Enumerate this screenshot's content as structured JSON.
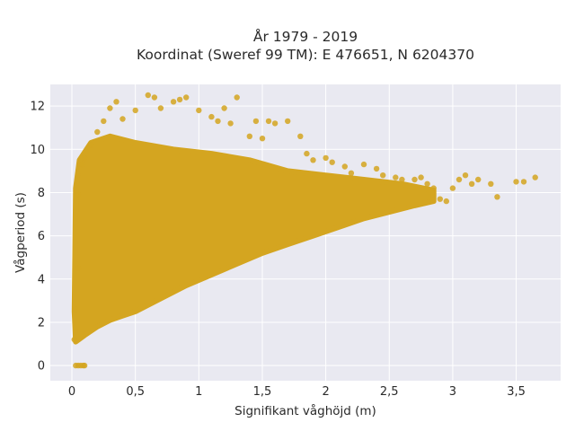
{
  "chart_data": {
    "type": "scatter",
    "title_line1": "År 1979 - 2019",
    "title_line2": "Koordinat (Sweref 99 TM): E 476651, N 6204370",
    "xlabel": "Signifikant våghöjd (m)",
    "ylabel": "Vågperiod (s)",
    "xlim": [
      -0.17,
      3.85
    ],
    "ylim": [
      -0.7,
      13.0
    ],
    "x_ticks": [
      0,
      0.5,
      1,
      1.5,
      2,
      2.5,
      3,
      3.5
    ],
    "x_tick_labels": [
      "0",
      "0,5",
      "1",
      "1,5",
      "2",
      "2,5",
      "3",
      "3,5"
    ],
    "y_ticks": [
      0,
      2,
      4,
      6,
      8,
      10,
      12
    ],
    "y_tick_labels": [
      "0",
      "2",
      "4",
      "6",
      "8",
      "10",
      "12"
    ],
    "grid": true,
    "legend": "none",
    "colors": {
      "point": "#D4A520",
      "plot_background": "#E9E9F1",
      "grid": "#ffffff"
    },
    "points": [
      [
        0.03,
        0.0
      ],
      [
        0.05,
        0.0
      ],
      [
        0.07,
        0.0
      ],
      [
        0.09,
        0.0
      ],
      [
        0.1,
        0.0
      ],
      [
        0.02,
        1.2
      ],
      [
        0.03,
        2.6
      ],
      [
        0.05,
        4.5
      ],
      [
        0.05,
        7.9
      ],
      [
        0.08,
        9.3
      ],
      [
        0.1,
        9.6
      ],
      [
        0.15,
        10.2
      ],
      [
        0.2,
        10.8
      ],
      [
        0.25,
        11.3
      ],
      [
        0.3,
        11.9
      ],
      [
        0.35,
        12.2
      ],
      [
        0.4,
        11.4
      ],
      [
        0.5,
        11.8
      ],
      [
        0.6,
        12.5
      ],
      [
        0.65,
        12.4
      ],
      [
        0.7,
        11.9
      ],
      [
        0.8,
        12.2
      ],
      [
        0.85,
        12.3
      ],
      [
        0.9,
        12.4
      ],
      [
        1.0,
        11.8
      ],
      [
        1.1,
        11.5
      ],
      [
        1.15,
        11.3
      ],
      [
        1.2,
        11.9
      ],
      [
        1.3,
        12.4
      ],
      [
        1.25,
        11.2
      ],
      [
        1.4,
        10.6
      ],
      [
        1.45,
        11.3
      ],
      [
        1.5,
        10.5
      ],
      [
        1.55,
        11.3
      ],
      [
        1.6,
        11.2
      ],
      [
        1.7,
        11.3
      ],
      [
        1.8,
        10.6
      ],
      [
        1.85,
        9.8
      ],
      [
        1.9,
        9.5
      ],
      [
        2.0,
        9.6
      ],
      [
        2.05,
        9.4
      ],
      [
        2.15,
        9.2
      ],
      [
        2.2,
        8.9
      ],
      [
        2.3,
        9.3
      ],
      [
        2.4,
        9.1
      ],
      [
        2.45,
        8.8
      ],
      [
        2.55,
        8.7
      ],
      [
        2.6,
        8.6
      ],
      [
        2.7,
        8.6
      ],
      [
        2.75,
        8.7
      ],
      [
        2.8,
        8.4
      ],
      [
        2.85,
        8.2
      ],
      [
        2.9,
        7.7
      ],
      [
        2.95,
        7.6
      ],
      [
        3.0,
        8.2
      ],
      [
        3.05,
        8.6
      ],
      [
        3.1,
        8.8
      ],
      [
        3.15,
        8.4
      ],
      [
        3.2,
        8.6
      ],
      [
        3.3,
        8.4
      ],
      [
        3.35,
        7.8
      ],
      [
        3.5,
        8.5
      ],
      [
        3.56,
        8.5
      ],
      [
        3.65,
        8.7
      ]
    ]
  }
}
